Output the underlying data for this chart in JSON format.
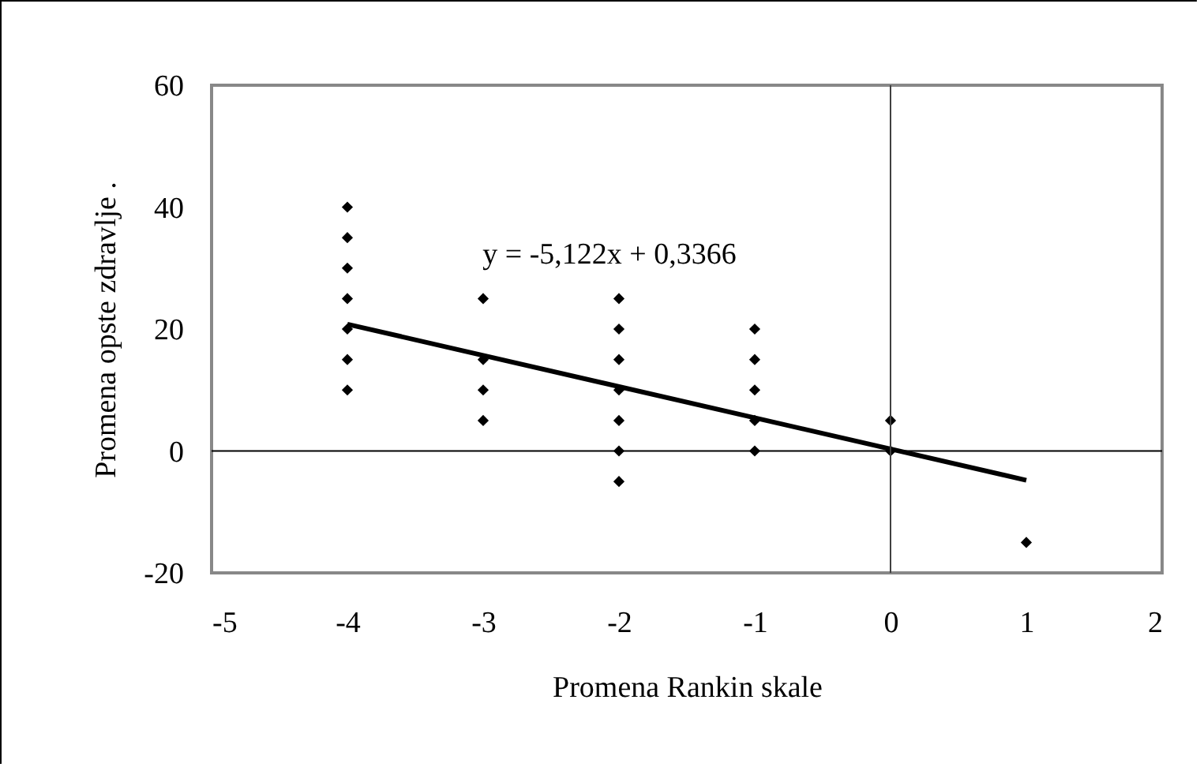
{
  "chart_data": {
    "type": "scatter",
    "xlabel": "Promena Rankin skale",
    "ylabel": "Promena opste zdravlje .",
    "xlim": [
      -5,
      2
    ],
    "xticks": [
      -5,
      -4,
      -3,
      -2,
      -1,
      0,
      1,
      2
    ],
    "ylim": [
      -20,
      60
    ],
    "yticks": [
      -20,
      0,
      20,
      40,
      60
    ],
    "grid": false,
    "marker": "diamond",
    "series": [
      {
        "color": "#000000",
        "x": [
          -4,
          -4,
          -4,
          -4,
          -4,
          -4,
          -4,
          -3,
          -3,
          -3,
          -3,
          -2,
          -2,
          -2,
          -2,
          -2,
          -2,
          -2,
          -1,
          -1,
          -1,
          -1,
          -1,
          0,
          0,
          1
        ],
        "values": [
          10,
          15,
          20,
          25,
          30,
          35,
          40,
          5,
          10,
          15,
          25,
          -5,
          0,
          5,
          10,
          15,
          20,
          25,
          0,
          5,
          10,
          15,
          20,
          0,
          5,
          -15
        ]
      },
      {
        "type": "line",
        "marker": "none",
        "color": "#000000",
        "x": [
          -4,
          1
        ],
        "values": [
          20.8,
          -4.8
        ]
      }
    ],
    "ref_lines": [
      {
        "axis": "y",
        "value": 0,
        "color": "#000000"
      },
      {
        "axis": "x",
        "value": 0,
        "color": "#404040"
      }
    ],
    "annotations": [
      "y = -5,122x + 0,3366"
    ]
  }
}
